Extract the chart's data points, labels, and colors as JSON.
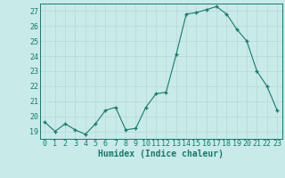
{
  "x": [
    0,
    1,
    2,
    3,
    4,
    5,
    6,
    7,
    8,
    9,
    10,
    11,
    12,
    13,
    14,
    15,
    16,
    17,
    18,
    19,
    20,
    21,
    22,
    23
  ],
  "y": [
    19.6,
    19.0,
    19.5,
    19.1,
    18.8,
    19.5,
    20.4,
    20.6,
    19.1,
    19.2,
    20.6,
    21.5,
    21.6,
    24.1,
    26.8,
    26.9,
    27.1,
    27.3,
    26.8,
    25.8,
    25.0,
    23.0,
    22.0,
    20.4
  ],
  "line_color": "#1a7a6a",
  "marker_color": "#1a7a6a",
  "bg_color": "#c8eae8",
  "grid_color": "#b8d8d4",
  "axis_color": "#1a7a6a",
  "xlabel": "Humidex (Indice chaleur)",
  "ylim": [
    18.5,
    27.5
  ],
  "xlim": [
    -0.5,
    23.5
  ],
  "yticks": [
    19,
    20,
    21,
    22,
    23,
    24,
    25,
    26,
    27
  ],
  "xticks": [
    0,
    1,
    2,
    3,
    4,
    5,
    6,
    7,
    8,
    9,
    10,
    11,
    12,
    13,
    14,
    15,
    16,
    17,
    18,
    19,
    20,
    21,
    22,
    23
  ],
  "label_fontsize": 7,
  "tick_fontsize": 6
}
